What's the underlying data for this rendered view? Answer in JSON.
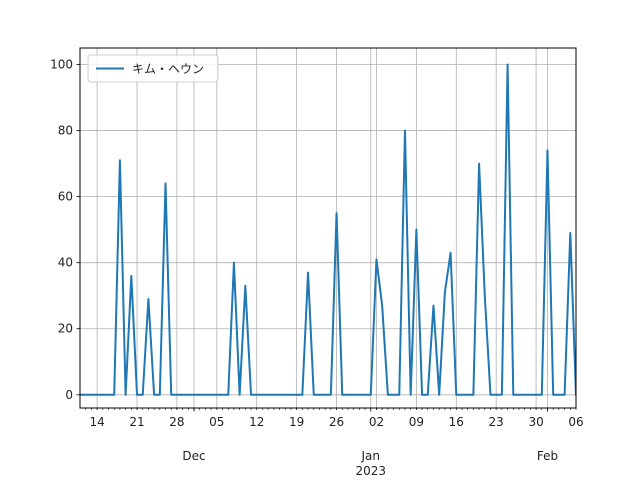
{
  "chart_data": {
    "type": "line",
    "title": "",
    "xlabel": "",
    "ylabel": "",
    "x_range": [
      "2022-11-11",
      "2023-02-06"
    ],
    "ylim": [
      -4,
      105
    ],
    "grid": true,
    "legend_position": "top-left",
    "yticks": [
      0,
      20,
      40,
      60,
      80,
      100
    ],
    "xticks_minor": [
      {
        "date": "2022-11-14",
        "label": "14"
      },
      {
        "date": "2022-11-21",
        "label": "21"
      },
      {
        "date": "2022-11-28",
        "label": "28"
      },
      {
        "date": "2022-12-05",
        "label": "05"
      },
      {
        "date": "2022-12-12",
        "label": "12"
      },
      {
        "date": "2022-12-19",
        "label": "19"
      },
      {
        "date": "2022-12-26",
        "label": "26"
      },
      {
        "date": "2023-01-02",
        "label": "02"
      },
      {
        "date": "2023-01-09",
        "label": "09"
      },
      {
        "date": "2023-01-16",
        "label": "16"
      },
      {
        "date": "2023-01-23",
        "label": "23"
      },
      {
        "date": "2023-01-30",
        "label": "30"
      },
      {
        "date": "2023-02-06",
        "label": "06"
      }
    ],
    "xticks_major": [
      {
        "date": "2022-12-01",
        "label": "Dec",
        "sublabel": ""
      },
      {
        "date": "2023-01-01",
        "label": "Jan",
        "sublabel": "2023"
      },
      {
        "date": "2023-02-01",
        "label": "Feb",
        "sublabel": ""
      }
    ],
    "series": [
      {
        "name": "キム・ヘウン",
        "color": "#1f77b4",
        "points": [
          [
            "2022-11-11",
            0
          ],
          [
            "2022-11-17",
            0
          ],
          [
            "2022-11-18",
            71
          ],
          [
            "2022-11-19",
            0
          ],
          [
            "2022-11-20",
            36
          ],
          [
            "2022-11-21",
            0
          ],
          [
            "2022-11-22",
            0
          ],
          [
            "2022-11-23",
            29
          ],
          [
            "2022-11-24",
            0
          ],
          [
            "2022-11-25",
            0
          ],
          [
            "2022-11-26",
            64
          ],
          [
            "2022-11-27",
            0
          ],
          [
            "2022-12-07",
            0
          ],
          [
            "2022-12-08",
            40
          ],
          [
            "2022-12-09",
            0
          ],
          [
            "2022-12-10",
            33
          ],
          [
            "2022-12-11",
            0
          ],
          [
            "2022-12-20",
            0
          ],
          [
            "2022-12-21",
            37
          ],
          [
            "2022-12-22",
            0
          ],
          [
            "2022-12-25",
            0
          ],
          [
            "2022-12-26",
            55
          ],
          [
            "2022-12-27",
            0
          ],
          [
            "2023-01-01",
            0
          ],
          [
            "2023-01-02",
            41
          ],
          [
            "2023-01-03",
            27
          ],
          [
            "2023-01-04",
            0
          ],
          [
            "2023-01-06",
            0
          ],
          [
            "2023-01-07",
            80
          ],
          [
            "2023-01-08",
            0
          ],
          [
            "2023-01-09",
            50
          ],
          [
            "2023-01-10",
            0
          ],
          [
            "2023-01-11",
            0
          ],
          [
            "2023-01-12",
            27
          ],
          [
            "2023-01-13",
            0
          ],
          [
            "2023-01-14",
            31
          ],
          [
            "2023-01-15",
            43
          ],
          [
            "2023-01-16",
            0
          ],
          [
            "2023-01-19",
            0
          ],
          [
            "2023-01-20",
            70
          ],
          [
            "2023-01-21",
            30
          ],
          [
            "2023-01-22",
            0
          ],
          [
            "2023-01-24",
            0
          ],
          [
            "2023-01-25",
            100
          ],
          [
            "2023-01-26",
            0
          ],
          [
            "2023-01-31",
            0
          ],
          [
            "2023-02-01",
            74
          ],
          [
            "2023-02-02",
            0
          ],
          [
            "2023-02-04",
            0
          ],
          [
            "2023-02-05",
            49
          ],
          [
            "2023-02-06",
            0
          ],
          [
            "2023-02-07",
            0
          ]
        ]
      }
    ]
  }
}
